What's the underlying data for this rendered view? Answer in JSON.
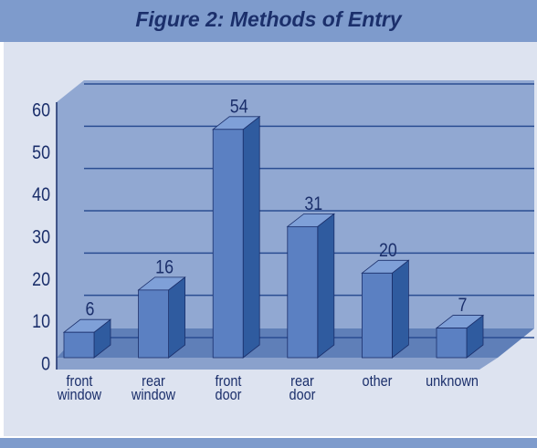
{
  "chart_data": {
    "type": "bar",
    "title": "Figure 2: Methods of Entry",
    "categories": [
      "front window",
      "rear window",
      "front door",
      "rear door",
      "other",
      "unknown"
    ],
    "values": [
      6,
      16,
      54,
      31,
      20,
      7
    ],
    "color": "#5b80c2",
    "ylim": [
      0,
      60
    ],
    "yticks": [
      0,
      10,
      20,
      30,
      40,
      50,
      60
    ],
    "grid": true
  }
}
